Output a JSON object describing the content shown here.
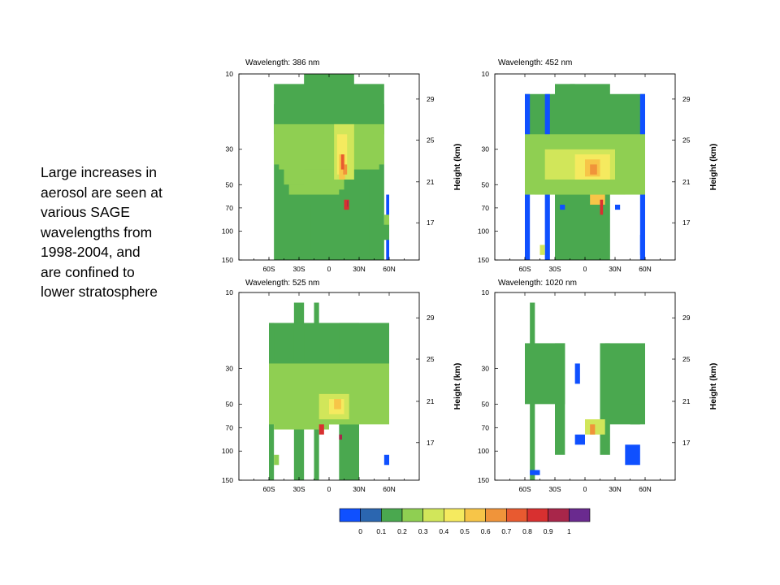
{
  "caption": {
    "lines": [
      "Large increases in",
      "aerosol are seen at",
      "various SAGE",
      "wavelengths from",
      "1998-2004,  and",
      "are  confined to",
      "lower stratosphere"
    ]
  },
  "colors": [
    "#0f50ff",
    "#2b66b0",
    "#4aa84f",
    "#8fcf52",
    "#d1e65a",
    "#f5ea5f",
    "#f7c548",
    "#f0943a",
    "#e85a30",
    "#d83030",
    "#a8264a",
    "#6a2a8f"
  ],
  "chart_data": [
    {
      "type": "heatmap",
      "title": "Wavelength: 386 nm",
      "xlabel": "",
      "ylabel": "Height (km)",
      "x_ticks": [
        "60S",
        "30S",
        "0",
        "30N",
        "60N"
      ],
      "x_tick_values": [
        -60,
        -30,
        0,
        30,
        60
      ],
      "xlim": [
        -90,
        90
      ],
      "y_left_ticks": [
        "10",
        "30",
        "50",
        "70",
        "100",
        "150"
      ],
      "y_right_ticks": [
        "29",
        "25",
        "21",
        "17"
      ],
      "value_range": [
        0,
        1
      ],
      "cells": [
        [
          -55,
          10,
          55,
          22,
          0.1
        ],
        [
          -25,
          22,
          25,
          38,
          0.1
        ],
        [
          -55,
          25,
          55,
          30,
          0.1
        ],
        [
          -18,
          10,
          -13,
          18,
          0.1
        ],
        [
          -7,
          10,
          -2,
          19,
          0.1
        ],
        [
          40,
          10,
          45,
          26,
          0.1
        ],
        [
          57,
          10,
          60,
          19,
          0.05
        ],
        [
          -55,
          22,
          55,
          28,
          0.15
        ],
        [
          -55,
          22,
          55,
          26,
          0.2
        ],
        [
          -50,
          21.5,
          50,
          24,
          0.25
        ],
        [
          -40,
          19,
          10,
          22,
          0.2
        ],
        [
          -45,
          20,
          -20,
          24,
          0.25
        ],
        [
          -25,
          19.5,
          15,
          21.5,
          0.25
        ],
        [
          5,
          20.5,
          25,
          26,
          0.3
        ],
        [
          8,
          21,
          18,
          25,
          0.4
        ],
        [
          10,
          20.5,
          16,
          23,
          0.5
        ],
        [
          14,
          21,
          18,
          22,
          0.6
        ],
        [
          12,
          21.5,
          15,
          23,
          0.7
        ],
        [
          15,
          17.5,
          20,
          18.5,
          0.8
        ],
        [
          18,
          17.8,
          19,
          18.4,
          0.9
        ],
        [
          55,
          15,
          60,
          17,
          0.2
        ],
        [
          45,
          14.5,
          60,
          16,
          0.15
        ]
      ]
    },
    {
      "type": "heatmap",
      "title": "Wavelength: 452 nm",
      "xlabel": "",
      "ylabel": "Height (km)",
      "x_ticks": [
        "60S",
        "30S",
        "0",
        "30N",
        "60N"
      ],
      "x_tick_values": [
        -60,
        -30,
        0,
        30,
        60
      ],
      "xlim": [
        -90,
        90
      ],
      "y_left_ticks": [
        "10",
        "30",
        "50",
        "70",
        "100",
        "150"
      ],
      "y_right_ticks": [
        "29",
        "25",
        "21",
        "17"
      ],
      "value_range": [
        0,
        1
      ],
      "cells": [
        [
          -60,
          20,
          60,
          29,
          0.1
        ],
        [
          -60,
          10,
          -55,
          29,
          0.05
        ],
        [
          -40,
          10,
          -35,
          29,
          0.05
        ],
        [
          -15,
          10,
          -10,
          30,
          0.1
        ],
        [
          -30,
          10,
          25,
          30,
          0.1
        ],
        [
          55,
          10,
          60,
          29,
          0.05
        ],
        [
          -60,
          19,
          60,
          25,
          0.2
        ],
        [
          -50,
          19,
          40,
          24,
          0.25
        ],
        [
          -40,
          20.5,
          30,
          23.5,
          0.3
        ],
        [
          -10,
          20.5,
          25,
          23,
          0.4
        ],
        [
          0,
          20.8,
          15,
          22.5,
          0.5
        ],
        [
          5,
          21,
          12,
          22,
          0.6
        ],
        [
          5,
          18,
          20,
          19,
          0.5
        ],
        [
          15,
          17,
          18,
          18.5,
          0.8
        ],
        [
          -25,
          17.5,
          -20,
          18,
          0.05
        ],
        [
          30,
          17.5,
          35,
          18,
          0.05
        ],
        [
          55,
          13,
          58,
          15,
          0.05
        ],
        [
          -45,
          13,
          -40,
          14,
          0.3
        ]
      ]
    },
    {
      "type": "heatmap",
      "title": "Wavelength: 525 nm",
      "xlabel": "",
      "ylabel": "Height (km)",
      "x_ticks": [
        "60S",
        "30S",
        "0",
        "30N",
        "60N"
      ],
      "x_tick_values": [
        -60,
        -30,
        0,
        30,
        60
      ],
      "xlim": [
        -90,
        90
      ],
      "y_left_ticks": [
        "10",
        "30",
        "50",
        "70",
        "100",
        "150"
      ],
      "y_right_ticks": [
        "29",
        "25",
        "21",
        "17"
      ],
      "value_range": [
        0,
        1
      ],
      "cells": [
        [
          -60,
          21,
          60,
          28,
          0.1
        ],
        [
          -60,
          10,
          -55,
          28,
          0.1
        ],
        [
          -35,
          10,
          -25,
          30,
          0.1
        ],
        [
          -15,
          10,
          -10,
          30,
          0.1
        ],
        [
          10,
          10,
          30,
          28,
          0.1
        ],
        [
          -60,
          18,
          60,
          24,
          0.2
        ],
        [
          -55,
          17.5,
          0,
          22,
          0.2
        ],
        [
          -45,
          18,
          30,
          22,
          0.25
        ],
        [
          -10,
          18.5,
          20,
          21,
          0.3
        ],
        [
          0,
          19,
          15,
          20.5,
          0.4
        ],
        [
          5,
          19.5,
          12,
          20.5,
          0.5
        ],
        [
          -10,
          17,
          -5,
          18,
          0.8
        ],
        [
          10,
          16.5,
          13,
          17,
          0.9
        ],
        [
          -55,
          14,
          -50,
          15,
          0.2
        ],
        [
          55,
          14,
          60,
          15,
          0.05
        ]
      ]
    },
    {
      "type": "heatmap",
      "title": "Wavelength: 1020 nm",
      "xlabel": "",
      "ylabel": "Height (km)",
      "x_ticks": [
        "60S",
        "30S",
        "0",
        "30N",
        "60N"
      ],
      "x_tick_values": [
        -60,
        -30,
        0,
        30,
        60
      ],
      "xlim": [
        -90,
        90
      ],
      "y_left_ticks": [
        "10",
        "30",
        "50",
        "70",
        "100",
        "150"
      ],
      "y_right_ticks": [
        "29",
        "25",
        "21",
        "17"
      ],
      "value_range": [
        0,
        1
      ],
      "cells": [
        [
          -60,
          20,
          -20,
          26,
          0.1
        ],
        [
          -55,
          10,
          -50,
          30,
          0.1
        ],
        [
          -30,
          15,
          -20,
          26,
          0.1
        ],
        [
          15,
          15,
          25,
          26,
          0.1
        ],
        [
          20,
          18,
          60,
          26,
          0.1
        ],
        [
          45,
          18,
          55,
          20,
          0.1
        ],
        [
          -10,
          22,
          -5,
          24,
          0.05
        ],
        [
          0,
          17,
          20,
          18.5,
          0.3
        ],
        [
          5,
          17,
          10,
          18,
          0.6
        ],
        [
          -10,
          16,
          0,
          17,
          0.05
        ],
        [
          40,
          14,
          55,
          16,
          0.05
        ],
        [
          -55,
          13,
          -45,
          13.5,
          0.05
        ]
      ]
    }
  ],
  "colorbar": {
    "labels": [
      "0",
      "0.1",
      "0.2",
      "0.3",
      "0.4",
      "0.5",
      "0.6",
      "0.7",
      "0.8",
      "0.9",
      "1"
    ]
  }
}
